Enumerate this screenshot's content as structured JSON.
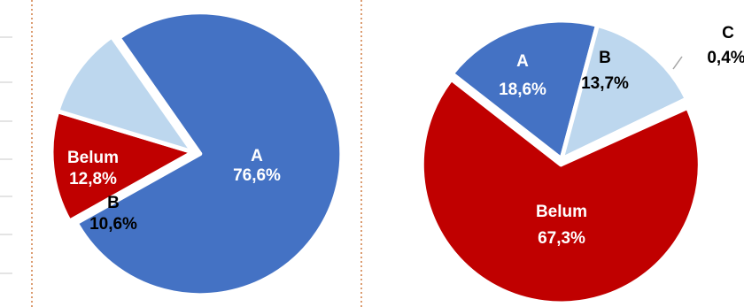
{
  "chart_data": [
    {
      "type": "pie",
      "categories": [
        "A",
        "Belum",
        "B"
      ],
      "values": [
        76.6,
        12.8,
        10.6
      ],
      "value_labels": [
        "76,6%",
        "12,8%",
        "10,6%"
      ],
      "colors": [
        "#4472C4",
        "#C00000",
        "#BDD7EE"
      ],
      "label_colors": [
        "#FFFFFF",
        "#FFFFFF",
        "#000000"
      ],
      "exploded": [
        "A"
      ],
      "legend": "none"
    },
    {
      "type": "pie",
      "categories": [
        "A",
        "B",
        "C",
        "Belum"
      ],
      "values": [
        18.6,
        13.7,
        0.4,
        67.3
      ],
      "value_labels": [
        "18,6%",
        "13,7%",
        "0,4%",
        "67,3%"
      ],
      "colors": [
        "#4472C4",
        "#BDD7EE",
        "#A5A5A5",
        "#C00000"
      ],
      "label_colors": [
        "#FFFFFF",
        "#000000",
        "#000000",
        "#FFFFFF"
      ],
      "exploded": [
        "Belum"
      ],
      "legend": "none"
    }
  ]
}
